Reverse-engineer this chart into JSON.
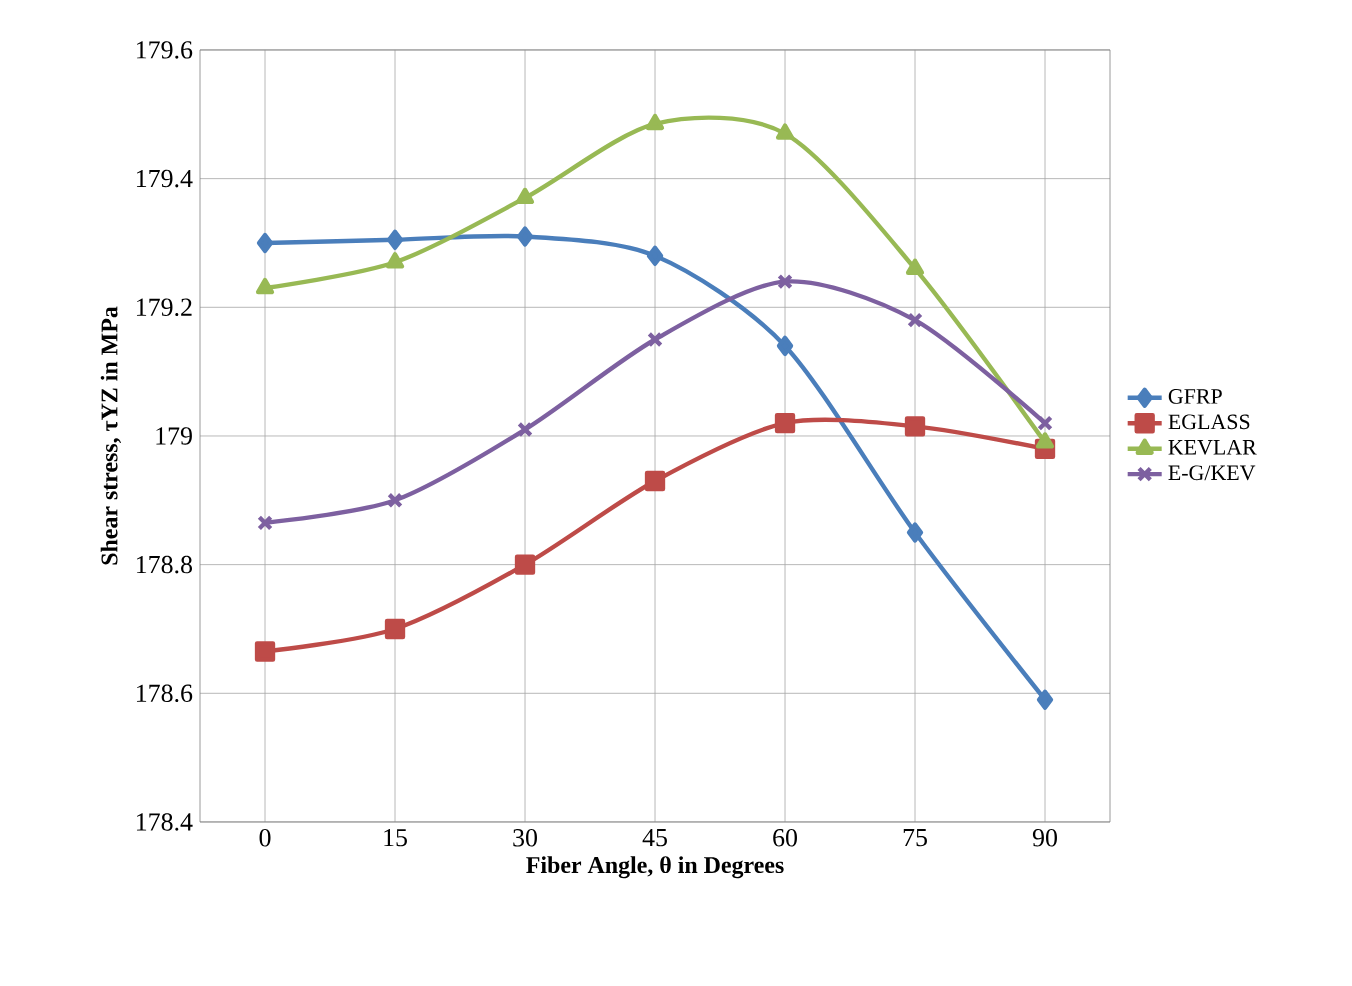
{
  "chart_data": {
    "type": "line",
    "xlabel": "Fiber Angle, θ in Degrees",
    "ylabel": "Shear  stress, τYZ in MPa",
    "categories": [
      "0",
      "15",
      "30",
      "45",
      "60",
      "75",
      "90"
    ],
    "series": [
      {
        "name": "GFRP",
        "color": "#4a7ebb",
        "marker": "diamond",
        "values": [
          179.3,
          179.305,
          179.31,
          179.28,
          179.14,
          178.85,
          178.59
        ]
      },
      {
        "name": "EGLASS",
        "color": "#be4b48",
        "marker": "square",
        "values": [
          178.665,
          178.7,
          178.8,
          178.93,
          179.02,
          179.015,
          178.98
        ]
      },
      {
        "name": "KEVLAR",
        "color": "#98b954",
        "marker": "triangle",
        "values": [
          179.23,
          179.27,
          179.37,
          179.485,
          179.47,
          179.26,
          178.99
        ]
      },
      {
        "name": "E-G/KEV",
        "color": "#7d60a0",
        "marker": "cross",
        "values": [
          178.865,
          178.9,
          179.01,
          179.15,
          179.24,
          179.18,
          179.02
        ]
      }
    ],
    "ylim": [
      178.4,
      179.6
    ],
    "yticks": [
      178.4,
      178.6,
      178.8,
      179,
      179.2,
      179.4,
      179.6
    ],
    "grid": true,
    "legend": "right"
  }
}
